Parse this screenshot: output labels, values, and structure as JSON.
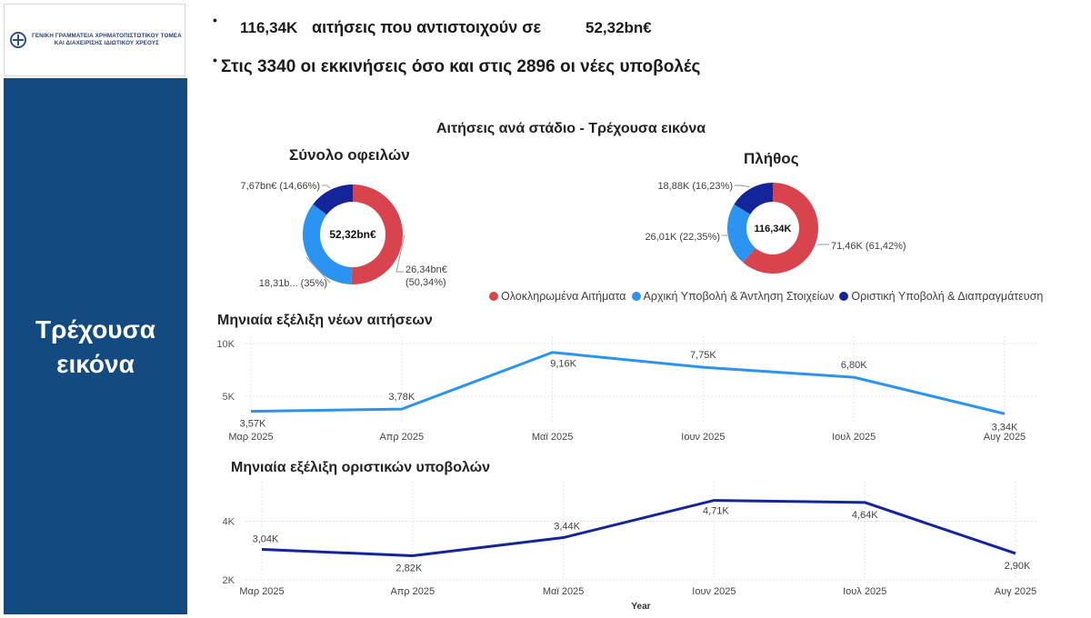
{
  "logo": {
    "line1": "ΓΕΝΙΚΗ ΓΡΑΜΜΑΤΕΙΑ ΧΡΗΜΑΤΟΠΙΣΤΩΤΙΚΟΥ ΤΟΜΕΑ",
    "line2": "ΚΑΙ ΔΙΑΧΕΙΡΙΣΗΣ ΙΔΙΩΤΙΚΟΥ ΧΡΕΟΥΣ"
  },
  "sidebar": {
    "title_line1": "Τρέχουσα",
    "title_line2": "εικόνα",
    "color": "#134a80"
  },
  "kpi": {
    "applications": "116,34K",
    "applications_text": "αιτήσεις που αντιστοιχούν σε",
    "amount": "52,32bn€",
    "line2": "Στις 3340 οι εκκινήσεις όσο και στις 2896 οι νέες υποβολές"
  },
  "colors": {
    "completed": "#d9434e",
    "initial": "#2b93f0",
    "final": "#14249b",
    "line_new": "#2b93f0",
    "line_final": "#14249b"
  },
  "chart_data": [
    {
      "type": "pie",
      "title": "Σύνολο οφειλών",
      "center_label": "52,32bn€",
      "categories": [
        "Ολοκληρωμένα Αιτήματα",
        "Αρχική Υποβολή & Άντληση Στοιχείων",
        "Οριστική Υποβολή & Διαπραγμάτευση"
      ],
      "values": [
        26.34,
        18.31,
        7.67
      ],
      "data_labels": [
        "26,34bn€ (50,34%)",
        "18,31b... (35%)",
        "7,67bn€ (14,66%)"
      ]
    },
    {
      "type": "pie",
      "title": "Πλήθος",
      "center_label": "116,34K",
      "categories": [
        "Ολοκληρωμένα Αιτήματα",
        "Αρχική Υποβολή & Άντληση Στοιχείων",
        "Οριστική Υποβολή & Διαπραγμάτευση"
      ],
      "values": [
        71.46,
        26.01,
        18.88
      ],
      "data_labels": [
        "71,46K (61,42%)",
        "26,01K (22,35%)",
        "18,88K (16,23%)"
      ]
    },
    {
      "type": "line",
      "title": "Μηνιαία εξέλιξη νέων αιτήσεων",
      "categories": [
        "Μαρ 2025",
        "Απρ 2025",
        "Μαϊ 2025",
        "Ιουν 2025",
        "Ιουλ 2025",
        "Αυγ 2025"
      ],
      "values": [
        3.57,
        3.78,
        9.16,
        7.75,
        6.8,
        3.34
      ],
      "data_labels": [
        "3,57K",
        "3,78K",
        "9,16K",
        "7,75K",
        "6,80K",
        "3,34K"
      ],
      "y_ticks": [
        "5K",
        "10K"
      ],
      "ylim": [
        2.5,
        10
      ],
      "grid": true
    },
    {
      "type": "line",
      "title": "Μηνιαία εξέλιξη οριστικών υποβολών",
      "xlabel": "Year",
      "categories": [
        "Μαρ 2025",
        "Απρ 2025",
        "Μαϊ 2025",
        "Ιουν 2025",
        "Ιουλ 2025",
        "Αυγ 2025"
      ],
      "values": [
        3.04,
        2.82,
        3.44,
        4.71,
        4.64,
        2.9
      ],
      "data_labels": [
        "3,04K",
        "2,82K",
        "3,44K",
        "4,71K",
        "4,64K",
        "2,90K"
      ],
      "y_ticks": [
        "2K",
        "4K"
      ],
      "ylim": [
        2,
        5.1
      ],
      "grid": true
    }
  ],
  "stage_title": "Αιτήσεις ανά στάδιο - Τρέχουσα εικόνα",
  "legend": [
    {
      "label": "Ολοκληρωμένα Αιτήματα",
      "color": "#d9434e"
    },
    {
      "label": "Αρχική Υποβολή & Άντληση Στοιχείων",
      "color": "#2b93f0"
    },
    {
      "label": "Οριστική Υποβολή & Διαπραγμάτευση",
      "color": "#14249b"
    }
  ]
}
